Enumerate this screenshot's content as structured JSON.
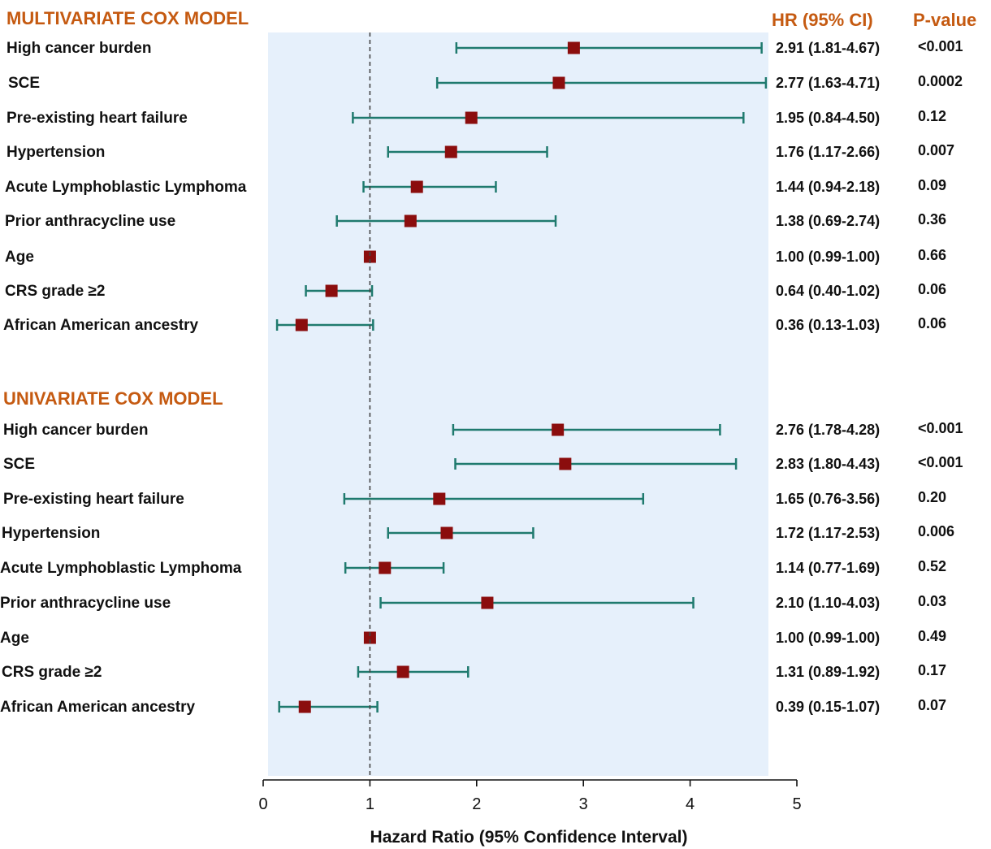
{
  "colors": {
    "accent": "#c55a11",
    "panel": "#e6f0fb",
    "ci_line": "#1f7a6e",
    "marker": "#8b0d0d",
    "reference_line": "#444444"
  },
  "headers": {
    "hr": "HR (95% CI)",
    "p": "P-value"
  },
  "chart_data": [
    {
      "type": "forest",
      "title": "MULTIVARIATE COX MODEL",
      "xlabel": "Hazard Ratio (95% Confidence Interval)",
      "xlim": [
        0,
        5
      ],
      "xticks": [
        "0",
        "1",
        "2",
        "3",
        "4",
        "5"
      ],
      "reference": 1,
      "rows": [
        {
          "label": "High cancer burden",
          "hr": 2.91,
          "lo": 1.81,
          "hi": 4.67,
          "hr_text": "2.91 (1.81-4.67)",
          "p": "<0.001"
        },
        {
          "label": "SCE",
          "hr": 2.77,
          "lo": 1.63,
          "hi": 4.71,
          "hr_text": "2.77 (1.63-4.71)",
          "p": "0.0002"
        },
        {
          "label": "Pre-existing heart failure",
          "hr": 1.95,
          "lo": 0.84,
          "hi": 4.5,
          "hr_text": "1.95 (0.84-4.50)",
          "p": "0.12"
        },
        {
          "label": "Hypertension",
          "hr": 1.76,
          "lo": 1.17,
          "hi": 2.66,
          "hr_text": "1.76 (1.17-2.66)",
          "p": "0.007"
        },
        {
          "label": "Acute Lymphoblastic Lymphoma",
          "hr": 1.44,
          "lo": 0.94,
          "hi": 2.18,
          "hr_text": "1.44 (0.94-2.18)",
          "p": "0.09"
        },
        {
          "label": "Prior anthracycline use",
          "hr": 1.38,
          "lo": 0.69,
          "hi": 2.74,
          "hr_text": "1.38 (0.69-2.74)",
          "p": "0.36"
        },
        {
          "label": "Age",
          "hr": 1.0,
          "lo": 0.99,
          "hi": 1.0,
          "hr_text": "1.00 (0.99-1.00)",
          "p": "0.66"
        },
        {
          "label": "CRS grade ≥2",
          "hr": 0.64,
          "lo": 0.4,
          "hi": 1.02,
          "hr_text": "0.64 (0.40-1.02)",
          "p": "0.06"
        },
        {
          "label": "African American ancestry",
          "hr": 0.36,
          "lo": 0.13,
          "hi": 1.03,
          "hr_text": "0.36 (0.13-1.03)",
          "p": "0.06"
        }
      ]
    },
    {
      "type": "forest",
      "title": "UNIVARIATE COX MODEL",
      "xlim": [
        0,
        5
      ],
      "reference": 1,
      "rows": [
        {
          "label": "High cancer burden",
          "hr": 2.76,
          "lo": 1.78,
          "hi": 4.28,
          "hr_text": "2.76 (1.78-4.28)",
          "p": "<0.001"
        },
        {
          "label": "SCE",
          "hr": 2.83,
          "lo": 1.8,
          "hi": 4.43,
          "hr_text": "2.83 (1.80-4.43)",
          "p": "<0.001"
        },
        {
          "label": "Pre-existing heart failure",
          "hr": 1.65,
          "lo": 0.76,
          "hi": 3.56,
          "hr_text": "1.65 (0.76-3.56)",
          "p": "0.20"
        },
        {
          "label": "Hypertension",
          "hr": 1.72,
          "lo": 1.17,
          "hi": 2.53,
          "hr_text": "1.72 (1.17-2.53)",
          "p": "0.006"
        },
        {
          "label": "Acute Lymphoblastic Lymphoma",
          "hr": 1.14,
          "lo": 0.77,
          "hi": 1.69,
          "hr_text": "1.14 (0.77-1.69)",
          "p": "0.52"
        },
        {
          "label": "Prior anthracycline use",
          "hr": 2.1,
          "lo": 1.1,
          "hi": 4.03,
          "hr_text": "2.10 (1.10-4.03)",
          "p": "0.03"
        },
        {
          "label": "Age",
          "hr": 1.0,
          "lo": 0.99,
          "hi": 1.0,
          "hr_text": "1.00 (0.99-1.00)",
          "p": "0.49"
        },
        {
          "label": "CRS grade ≥2",
          "hr": 1.31,
          "lo": 0.89,
          "hi": 1.92,
          "hr_text": "1.31 (0.89-1.92)",
          "p": "0.17"
        },
        {
          "label": "African American ancestry",
          "hr": 0.39,
          "lo": 0.15,
          "hi": 1.07,
          "hr_text": "0.39 (0.15-1.07)",
          "p": "0.07"
        }
      ]
    }
  ]
}
